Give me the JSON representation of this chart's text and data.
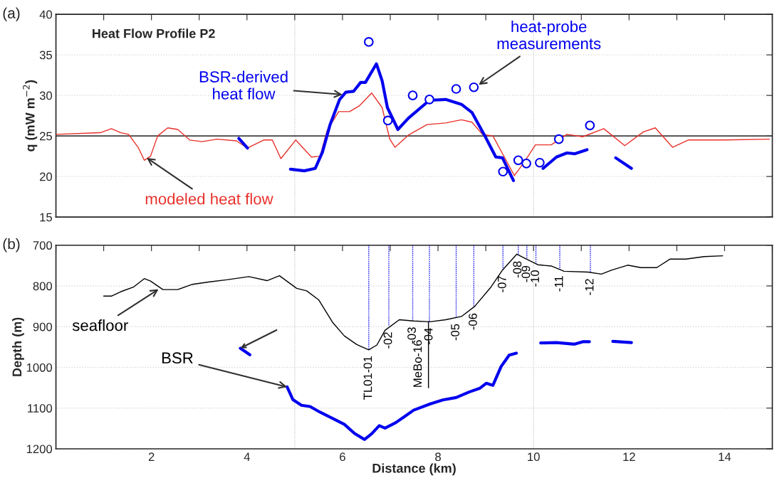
{
  "chart_data": [
    {
      "type": "line",
      "title": "Heat Flow Profile P2",
      "ylabel": "q (mW m$^{−2}$)",
      "xlim": [
        0,
        15
      ],
      "xticks": [
        {
          "value": 0,
          "label": null
        },
        {
          "value": 1,
          "label": null
        },
        {
          "value": 2,
          "label": null
        },
        {
          "value": 3,
          "label": null
        },
        {
          "value": 4,
          "label": null
        },
        {
          "value": 5,
          "label": null
        },
        {
          "value": 6,
          "label": null
        },
        {
          "value": 7,
          "label": null
        },
        {
          "value": 8,
          "label": null
        },
        {
          "value": 9,
          "label": null
        },
        {
          "value": 10,
          "label": null
        },
        {
          "value": 11,
          "label": null
        },
        {
          "value": 12,
          "label": null
        },
        {
          "value": 13,
          "label": null
        },
        {
          "value": 14,
          "label": null
        },
        {
          "value": 15,
          "label": null
        }
      ],
      "ylim": [
        15,
        40
      ],
      "yticks": [
        15,
        20,
        25,
        30,
        35,
        40
      ],
      "tick_labels": "y",
      "grid": "y",
      "series": [
        {
          "color": "#e8302a",
          "x": [
            0,
            0.93,
            1.16,
            1.36,
            1.52,
            1.72,
            1.85,
            1.98,
            2.13,
            2.34,
            2.55,
            2.8,
            3.06,
            3.37,
            3.78,
            4.01,
            4.35,
            4.53,
            4.71,
            5.02,
            5.35,
            5.53,
            5.68,
            5.92,
            6.15,
            6.35,
            6.61,
            6.83,
            6.99,
            7.1,
            7.38,
            7.77,
            8.16,
            8.49,
            8.71,
            8.93,
            9.15,
            9.37,
            9.6,
            9.82,
            10.04,
            10.37,
            10.7,
            11.03,
            11.47,
            11.91,
            12.3,
            12.55,
            12.91,
            13.24,
            14.02,
            14.94
          ],
          "values": [
            25.2,
            25.4,
            25.9,
            25.4,
            25.2,
            23.6,
            22,
            22.5,
            25,
            26,
            25.8,
            24.5,
            24.3,
            24.6,
            24.4,
            23.5,
            24.5,
            24.5,
            22.2,
            24.5,
            22.4,
            22.5,
            25.7,
            28,
            28,
            28.7,
            30.3,
            28.5,
            24.6,
            23.6,
            25.1,
            26.4,
            26.6,
            27,
            26.7,
            25.2,
            25,
            22.6,
            20.1,
            21.9,
            23.9,
            23.9,
            25.2,
            24.9,
            25.9,
            23.8,
            25.5,
            26,
            23.6,
            24.5,
            24.5,
            24.6
          ]
        },
        {
          "color": "#0000ee",
          "x": [
            3.83,
            4.01,
            4.45,
            4.91,
            5.2,
            5.43,
            5.58,
            5.74,
            5.94,
            6.07,
            6.23,
            6.38,
            6.48,
            6.71,
            6.83,
            6.94,
            7.16,
            7.38,
            7.82,
            8.16,
            8.49,
            8.71,
            8.99,
            9.21,
            9.35,
            9.58,
            9.9,
            10.2,
            10.48,
            10.7,
            10.86,
            11.12,
            11.4,
            11.72,
            12.05
          ],
          "values": [
            24.7,
            23.5,
            null,
            20.9,
            20.7,
            21,
            23,
            26.4,
            29.5,
            30.4,
            30.5,
            31.6,
            31.6,
            33.9,
            31.8,
            28.5,
            25.8,
            27.2,
            29.4,
            29.5,
            28.9,
            27.9,
            24.9,
            22.4,
            22.3,
            19.5,
            null,
            21,
            22.4,
            22.9,
            22.8,
            23.3,
            null,
            22.3,
            21
          ]
        },
        {
          "type": "scatter",
          "color": "#0000ee",
          "marker": "circle",
          "x": [
            6.55,
            6.95,
            7.47,
            7.82,
            8.38,
            8.75,
            9.36,
            9.68,
            9.85,
            10.13,
            10.53,
            11.18
          ],
          "values": [
            36.6,
            26.9,
            30,
            29.5,
            30.8,
            31,
            20.6,
            22,
            21.6,
            21.7,
            24.6,
            26.3
          ]
        }
      ],
      "ref_lines": [
        {
          "axis": "y",
          "value": 25,
          "color": "#404040",
          "line_style": "solid"
        },
        {
          "axis": "x",
          "value": 5,
          "color": "#d8d8d8",
          "line_style": "dotted"
        },
        {
          "axis": "x",
          "value": 10,
          "color": "#d8d8d8",
          "line_style": "dotted"
        }
      ],
      "annotations": [
        "(a)",
        {
          "text": "modeled heat flow",
          "x": 1.9,
          "y": 22.3
        },
        {
          "text": "BSR-derived\nheat flow",
          "x": 6.0,
          "y": 30.1
        },
        {
          "text": "heat-probe\nmeasurements",
          "x": 8.85,
          "y": 31.3
        }
      ]
    },
    {
      "type": "line",
      "xlabel": "Distance (km)",
      "ylabel": "Depth (m)",
      "xlim": [
        0,
        15
      ],
      "xticks": [
        {
          "value": 0,
          "label": null
        },
        {
          "value": 1,
          "label": null
        },
        2,
        {
          "value": 3,
          "label": null
        },
        4,
        {
          "value": 5,
          "label": null
        },
        6,
        {
          "value": 7,
          "label": null
        },
        8,
        {
          "value": 9,
          "label": null
        },
        10,
        {
          "value": 11,
          "label": null
        },
        12,
        {
          "value": 13,
          "label": null
        },
        14,
        {
          "value": 15,
          "label": null
        }
      ],
      "ylim": [
        1200,
        700
      ],
      "yticks": [
        700,
        800,
        900,
        1000,
        1100,
        1200
      ],
      "grid": "y",
      "series": [
        {
          "color": "#000000",
          "x": [
            1,
            1.16,
            1.36,
            1.62,
            1.85,
            1.98,
            2.24,
            2.55,
            2.86,
            3.22,
            3.57,
            4.04,
            4.42,
            4.68,
            5.04,
            5.25,
            5.5,
            5.79,
            6.04,
            6.3,
            6.55,
            6.72,
            6.89,
            7.19,
            7.49,
            7.83,
            8.16,
            8.49,
            8.77,
            9.1,
            9.35,
            9.65,
            9.87,
            10.09,
            10.37,
            10.64,
            11.14,
            11.42,
            11.64,
            11.97,
            12.25,
            12.58,
            12.86,
            13.19,
            13.57,
            13.96
          ],
          "values": [
            825,
            825,
            814,
            803,
            782,
            788,
            809,
            809,
            796,
            790,
            785,
            777,
            787,
            775,
            806,
            812,
            834,
            889,
            923,
            944,
            957,
            945,
            909,
            883,
            886,
            888,
            883,
            875,
            850,
            804,
            761,
            722,
            735,
            748,
            751,
            764,
            766,
            771,
            761,
            749,
            755,
            755,
            734,
            734,
            728,
            726
          ]
        },
        {
          "color": "#0000ee",
          "x": [
            3.86,
            4.06,
            4.45,
            4.84,
            4.96,
            5.14,
            5.32,
            5.53,
            5.79,
            6.04,
            6.25,
            6.46,
            6.61,
            6.77,
            6.89,
            7.11,
            7.27,
            7.49,
            7.83,
            8.1,
            8.38,
            8.66,
            8.88,
            9.01,
            9.15,
            9.32,
            9.49,
            9.64,
            9.9,
            10.15,
            10.48,
            10.86,
            11.03,
            11.17,
            11.4,
            11.66,
            12.05
          ],
          "values": [
            953,
            969,
            null,
            1048,
            1079,
            1093,
            1096,
            1110,
            1125,
            1140,
            1162,
            1177,
            1163,
            1143,
            1149,
            1136,
            1123,
            1105,
            1090,
            1080,
            1074,
            1060,
            1051,
            1039,
            1044,
            998,
            970,
            965,
            null,
            940,
            939,
            943,
            937,
            937,
            null,
            936,
            939
          ]
        },
        {
          "color": "#000000",
          "x": [
            7.8,
            7.8
          ],
          "values": [
            888,
            1050
          ]
        },
        {
          "color": "#3030ee",
          "line_style": "dotted",
          "x": [
            6.55,
            6.55
          ],
          "values": [
            700,
            957
          ]
        },
        {
          "color": "#3030ee",
          "line_style": "dotted",
          "x": [
            6.97,
            6.97
          ],
          "values": [
            700,
            898
          ]
        },
        {
          "color": "#3030ee",
          "line_style": "dotted",
          "x": [
            7.47,
            7.47
          ],
          "values": [
            700,
            886
          ]
        },
        {
          "color": "#3030ee",
          "line_style": "dotted",
          "x": [
            7.82,
            7.82
          ],
          "values": [
            700,
            888
          ]
        },
        {
          "color": "#3030ee",
          "line_style": "dotted",
          "x": [
            8.38,
            8.38
          ],
          "values": [
            700,
            878
          ]
        },
        {
          "color": "#3030ee",
          "line_style": "dotted",
          "x": [
            8.75,
            8.75
          ],
          "values": [
            700,
            852
          ]
        },
        {
          "color": "#3030ee",
          "line_style": "dotted",
          "x": [
            9.36,
            9.36
          ],
          "values": [
            700,
            760
          ]
        },
        {
          "color": "#3030ee",
          "line_style": "dotted",
          "x": [
            9.68,
            9.68
          ],
          "values": [
            700,
            724
          ]
        },
        {
          "color": "#3030ee",
          "line_style": "dotted",
          "x": [
            9.86,
            9.86
          ],
          "values": [
            700,
            735
          ]
        },
        {
          "color": "#3030ee",
          "line_style": "dotted",
          "x": [
            10.05,
            10.05
          ],
          "values": [
            700,
            746
          ]
        },
        {
          "color": "#3030ee",
          "line_style": "dotted",
          "x": [
            10.55,
            10.55
          ],
          "values": [
            700,
            760
          ]
        },
        {
          "color": "#3030ee",
          "line_style": "dotted",
          "x": [
            11.19,
            11.19
          ],
          "values": [
            700,
            767
          ]
        }
      ],
      "ref_lines": [
        {
          "axis": "x",
          "value": 5,
          "color": "#d8d8d8",
          "line_style": "dotted"
        },
        {
          "axis": "x",
          "value": 10,
          "color": "#d8d8d8",
          "line_style": "dotted"
        }
      ],
      "annotations": [
        "(b)",
        {
          "text": "seafloor",
          "x": 2.15,
          "y": 808
        },
        {
          "text": "BSR",
          "x": 4.84,
          "y": 1048
        },
        {
          "text": "MeBo-16",
          "x": 7.8,
          "y": 1050
        },
        {
          "text": "TL01-01",
          "x": 6.55,
          "y": 957
        },
        {
          "text": "-02",
          "x": 6.97,
          "y": 898
        },
        {
          "text": "-03",
          "x": 7.47,
          "y": 886
        },
        {
          "text": "-04",
          "x": 7.82,
          "y": 888
        },
        {
          "text": "-05",
          "x": 8.38,
          "y": 878
        },
        {
          "text": "-06",
          "x": 8.75,
          "y": 852
        },
        {
          "text": "-07",
          "x": 9.36,
          "y": 760
        },
        {
          "text": "-08",
          "x": 9.68,
          "y": 724
        },
        {
          "text": "-09",
          "x": 9.86,
          "y": 735
        },
        {
          "text": "-10",
          "x": 10.05,
          "y": 746
        },
        {
          "text": "-11",
          "x": 10.55,
          "y": 760
        },
        {
          "text": "-12",
          "x": 11.19,
          "y": 767
        }
      ]
    }
  ]
}
